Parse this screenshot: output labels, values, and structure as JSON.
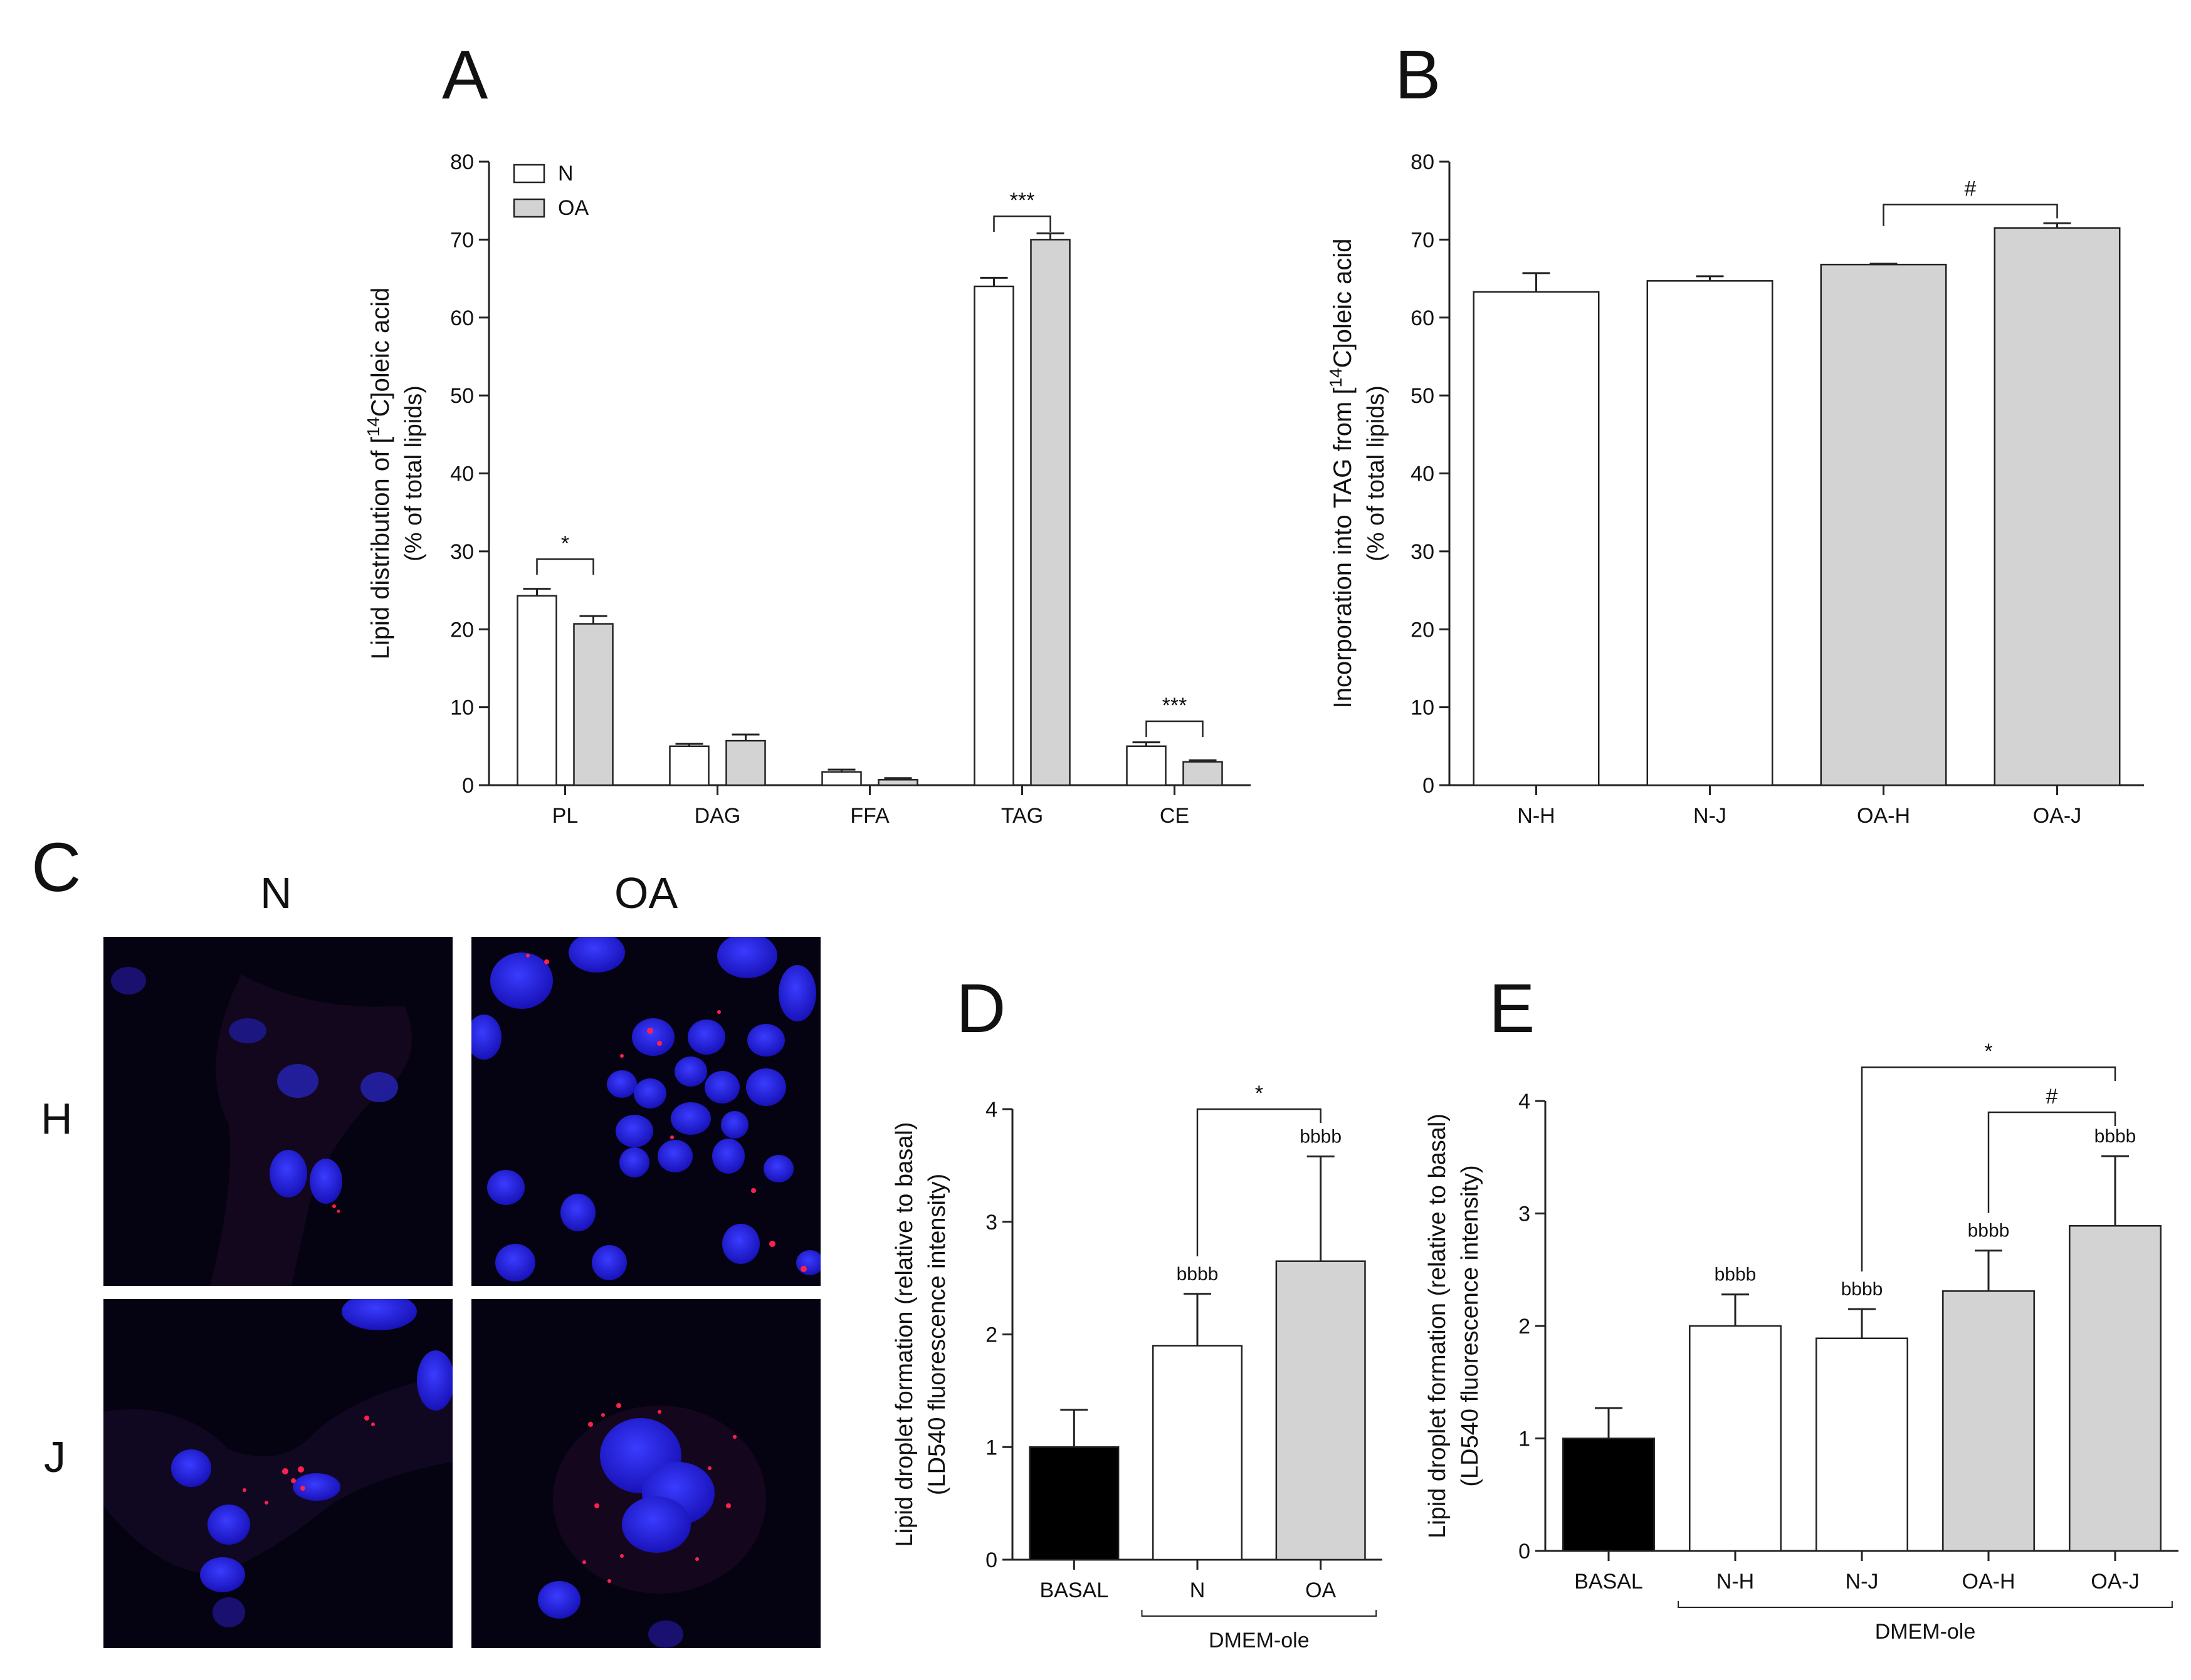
{
  "panel_letters": {
    "A": "A",
    "B": "B",
    "C": "C",
    "D": "D",
    "E": "E"
  },
  "colors": {
    "white_bar": "#ffffff",
    "grey_bar": "#d3d3d3",
    "black_bar": "#000000",
    "axis": "#222222"
  },
  "panel_c": {
    "col_labels": [
      "N",
      "OA"
    ],
    "row_labels": [
      "H",
      "J"
    ]
  },
  "chart_data": [
    {
      "id": "A",
      "type": "bar",
      "ylabel_parts": [
        "Lipid distribution of [",
        "14",
        "C]oleic acid"
      ],
      "ylabel2": "(% of total lipids)",
      "ylim": [
        0,
        80
      ],
      "yticks": [
        0,
        10,
        20,
        30,
        40,
        50,
        60,
        70,
        80
      ],
      "categories": [
        "PL",
        "DAG",
        "FFA",
        "TAG",
        "CE"
      ],
      "series": [
        {
          "name": "N",
          "color": "#ffffff",
          "values": [
            24.3,
            5.0,
            1.7,
            64.0,
            5.0
          ],
          "errors": [
            0.9,
            0.3,
            0.3,
            1.1,
            0.5
          ]
        },
        {
          "name": "OA",
          "color": "#d3d3d3",
          "values": [
            20.7,
            5.7,
            0.7,
            70.0,
            3.0
          ],
          "errors": [
            1.0,
            0.8,
            0.2,
            0.8,
            0.2
          ]
        }
      ],
      "legend": "top-left",
      "annotations": [
        {
          "text": "*",
          "category": 0,
          "y": 29
        },
        {
          "text": "***",
          "category": 3,
          "y": 73
        },
        {
          "text": "***",
          "category": 4,
          "y": 8.2
        }
      ]
    },
    {
      "id": "B",
      "type": "bar",
      "ylabel_parts": [
        "Incorporation into TAG from [",
        "14",
        "C]oleic acid"
      ],
      "ylabel2": "(% of total lipids)",
      "ylim": [
        0,
        80
      ],
      "yticks": [
        0,
        10,
        20,
        30,
        40,
        50,
        60,
        70,
        80
      ],
      "categories": [
        "N-H",
        "N-J",
        "OA-H",
        "OA-J"
      ],
      "values": [
        63.3,
        64.7,
        66.8,
        71.5
      ],
      "errors": [
        2.4,
        0.6,
        0.1,
        0.6
      ],
      "bar_colors": [
        "#ffffff",
        "#ffffff",
        "#d3d3d3",
        "#d3d3d3"
      ],
      "annotations": [
        {
          "text": "#",
          "from": 2,
          "to": 3,
          "y": 74.5
        }
      ]
    },
    {
      "id": "D",
      "type": "bar",
      "ylabel": "Lipid droplet formation (relative to basal)",
      "ylabel2": "(LD540 fluorescence intensity)",
      "ylim": [
        0,
        4
      ],
      "yticks": [
        0,
        1,
        2,
        3,
        4
      ],
      "categories": [
        "BASAL",
        "N",
        "OA"
      ],
      "values": [
        1.0,
        1.9,
        2.65
      ],
      "errors": [
        0.33,
        0.46,
        0.93
      ],
      "bar_colors": [
        "#000000",
        "#ffffff",
        "#d3d3d3"
      ],
      "bar_labels": [
        "",
        "bbbb",
        "bbbb"
      ],
      "group_label": "DMEM-ole",
      "group_range": [
        1,
        2
      ],
      "annotations": [
        {
          "text": "*",
          "from": 1,
          "to": 2,
          "y": 4.0
        }
      ]
    },
    {
      "id": "E",
      "type": "bar",
      "ylabel": "Lipid droplet formation (relative to basal)",
      "ylabel2": "(LD540 fluorescence intensity)",
      "ylim": [
        0,
        4
      ],
      "yticks": [
        0,
        1,
        2,
        3,
        4
      ],
      "categories": [
        "BASAL",
        "N-H",
        "N-J",
        "OA-H",
        "OA-J"
      ],
      "values": [
        1.0,
        2.0,
        1.89,
        2.31,
        2.89
      ],
      "errors": [
        0.27,
        0.28,
        0.26,
        0.36,
        0.62
      ],
      "bar_colors": [
        "#000000",
        "#ffffff",
        "#ffffff",
        "#d3d3d3",
        "#d3d3d3"
      ],
      "bar_labels": [
        "",
        "bbbb",
        "bbbb",
        "bbbb",
        "bbbb"
      ],
      "group_label": "DMEM-ole",
      "group_range": [
        1,
        4
      ],
      "annotations": [
        {
          "text": "*",
          "from": 2,
          "to": 4,
          "y": 4.3
        },
        {
          "text": "#",
          "from": 3,
          "to": 4,
          "y": 3.9
        }
      ]
    }
  ]
}
